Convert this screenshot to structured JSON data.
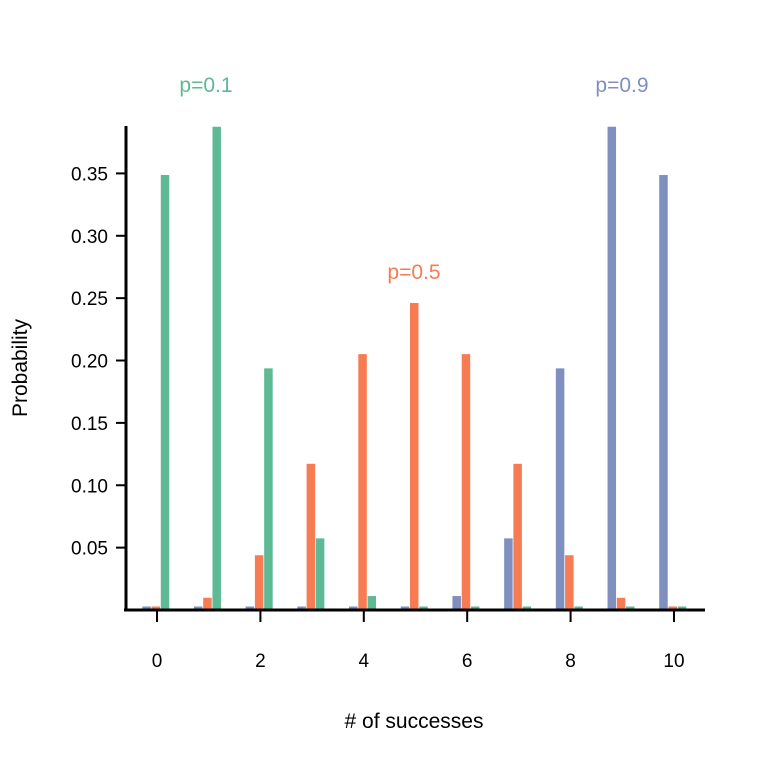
{
  "chart_data": {
    "type": "bar",
    "xlabel": "# of successes",
    "ylabel": "Probability",
    "x": [
      0,
      1,
      2,
      3,
      4,
      5,
      6,
      7,
      8,
      9,
      10
    ],
    "xticks": [
      "0",
      "2",
      "4",
      "6",
      "8",
      "10"
    ],
    "xticks_values": [
      0,
      2,
      4,
      6,
      8,
      10
    ],
    "yticks": [
      "0.05",
      "0.10",
      "0.15",
      "0.20",
      "0.25",
      "0.30",
      "0.35"
    ],
    "yticks_values": [
      0.05,
      0.1,
      0.15,
      0.2,
      0.25,
      0.3,
      0.35
    ],
    "xlim": [
      -0.6,
      10.6
    ],
    "ylim": [
      0,
      0.388
    ],
    "grid": false,
    "legend": "none",
    "series": [
      {
        "name": "p=0.9",
        "color": "#7f90c0",
        "values": [
          0.0,
          0.0,
          0.0,
          0.0,
          0.0001,
          0.0015,
          0.0112,
          0.0574,
          0.1937,
          0.3874,
          0.3487
        ]
      },
      {
        "name": "p=0.5",
        "color": "#f77b53",
        "values": [
          0.001,
          0.0098,
          0.0439,
          0.1172,
          0.2051,
          0.2461,
          0.2051,
          0.1172,
          0.0439,
          0.0098,
          0.001
        ]
      },
      {
        "name": "p=0.1",
        "color": "#5eb995",
        "values": [
          0.3487,
          0.3874,
          0.1937,
          0.0574,
          0.0112,
          0.0015,
          0.0001,
          0.0,
          0.0,
          0.0,
          0.0
        ]
      }
    ],
    "annotations": [
      {
        "text": "p=0.1",
        "color": "#5eb995"
      },
      {
        "text": "p=0.5",
        "color": "#f77b53"
      },
      {
        "text": "p=0.9",
        "color": "#7f90c0"
      }
    ]
  }
}
